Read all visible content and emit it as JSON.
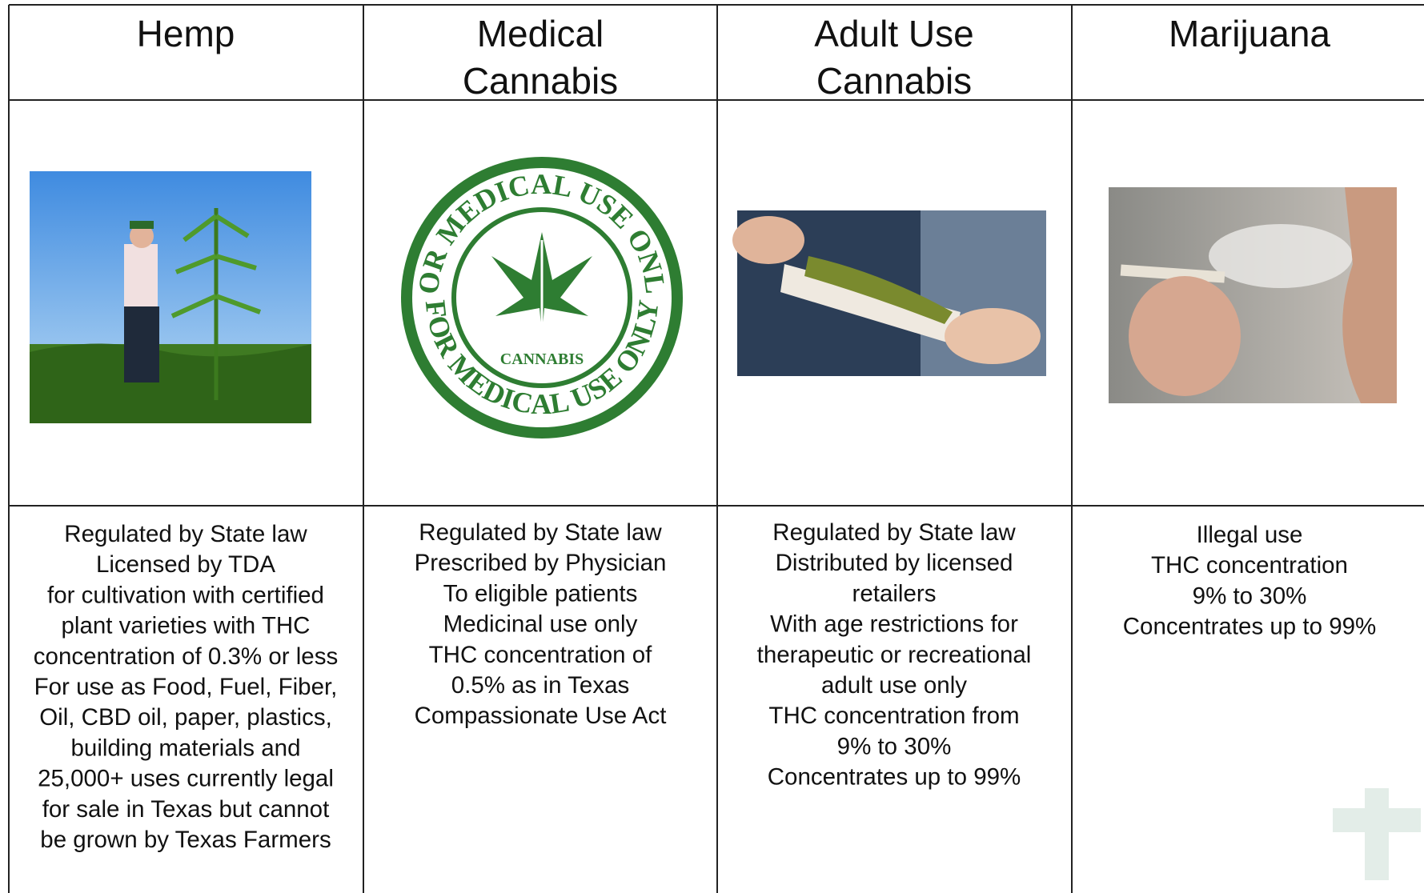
{
  "table": {
    "header": [
      [
        "Hemp"
      ],
      [
        "Medical",
        "Cannabis"
      ],
      [
        "Adult Use",
        "Cannabis"
      ],
      [
        "Marijuana"
      ]
    ],
    "descriptions": [
      [
        "Regulated by State law",
        "Licensed  by TDA",
        "for cultivation with certified",
        "plant varieties with THC",
        "concentration of 0.3% or less",
        "For use as Food, Fuel, Fiber,",
        "Oil, CBD oil, paper, plastics,",
        "building materials and",
        "25,000+ uses currently legal",
        "for sale in Texas but cannot",
        "be grown by Texas Farmers"
      ],
      [
        "Regulated by State law",
        "Prescribed by Physician",
        "To eligible patients",
        "Medicinal use only",
        "THC concentration of",
        "0.5% as in Texas",
        "Compassionate Use Act"
      ],
      [
        "Regulated by State law",
        "Distributed by licensed",
        "retailers",
        "With age restrictions for",
        "therapeutic or recreational",
        "adult use only",
        "THC concentration from",
        "9% to 30%",
        "Concentrates up to 99%"
      ],
      [
        "Illegal use",
        "THC concentration",
        "9% to 30%",
        "Concentrates up to 99%"
      ]
    ]
  },
  "seal": {
    "ring_top": "FOR MEDICAL USE ONLY",
    "ring_bottom": "FOR MEDICAL USE ONLY",
    "center": "CANNABIS"
  }
}
